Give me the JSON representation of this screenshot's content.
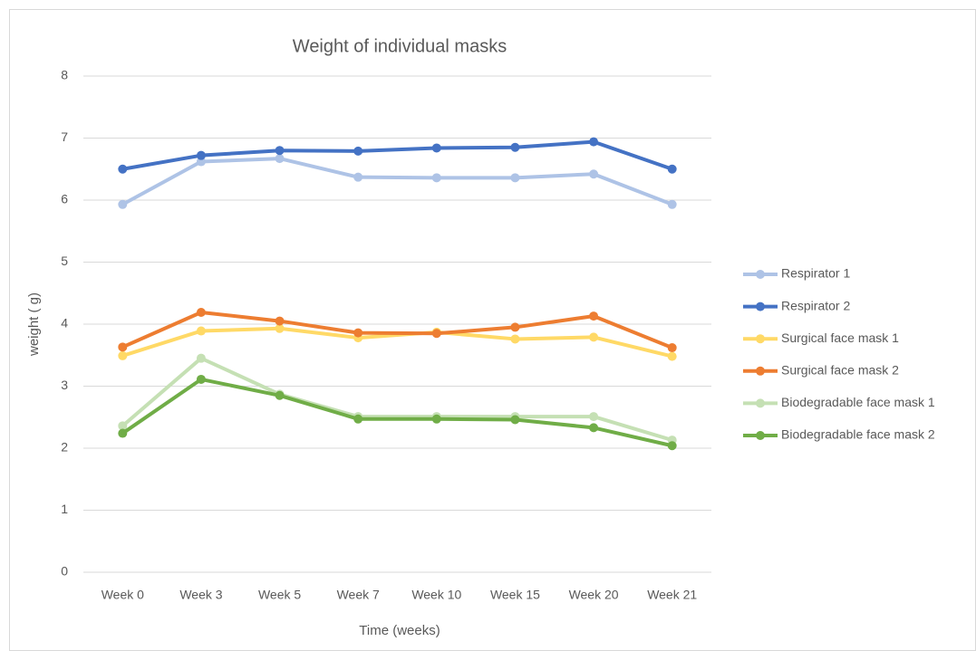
{
  "chart_data": {
    "type": "line",
    "title": "Weight of individual masks",
    "x_label": "Time (weeks)",
    "y_label": "weight ( g)",
    "categories": [
      "Week 0",
      "Week 3",
      "Week 5",
      "Week 7",
      "Week 10",
      "Week 15",
      "Week 20",
      "Week 21"
    ],
    "ylim": [
      0,
      8
    ],
    "yticks": [
      0,
      1,
      2,
      3,
      4,
      5,
      6,
      7,
      8
    ],
    "grid": true,
    "legend": "right",
    "series": [
      {
        "name": "Respirator 1",
        "color": "#aec3e6",
        "values": [
          5.93,
          6.62,
          6.67,
          6.37,
          6.36,
          6.36,
          6.42,
          5.93
        ]
      },
      {
        "name": "Respirator 2",
        "color": "#4472c4",
        "values": [
          6.5,
          6.72,
          6.8,
          6.79,
          6.84,
          6.85,
          6.94,
          6.5
        ]
      },
      {
        "name": "Surgical face mask 1",
        "color": "#ffd966",
        "values": [
          3.49,
          3.89,
          3.93,
          3.78,
          3.87,
          3.76,
          3.79,
          3.48
        ]
      },
      {
        "name": "Surgical face mask 2",
        "color": "#ed7d31",
        "values": [
          3.63,
          4.19,
          4.05,
          3.86,
          3.85,
          3.95,
          4.13,
          3.62
        ]
      },
      {
        "name": "Biodegradable face mask 1",
        "color": "#c5e0b4",
        "values": [
          2.36,
          3.45,
          2.87,
          2.51,
          2.51,
          2.51,
          2.51,
          2.13
        ]
      },
      {
        "name": "Biodegradable face mask 2",
        "color": "#70ad47",
        "values": [
          2.24,
          3.11,
          2.85,
          2.47,
          2.47,
          2.46,
          2.33,
          2.04
        ]
      }
    ]
  }
}
